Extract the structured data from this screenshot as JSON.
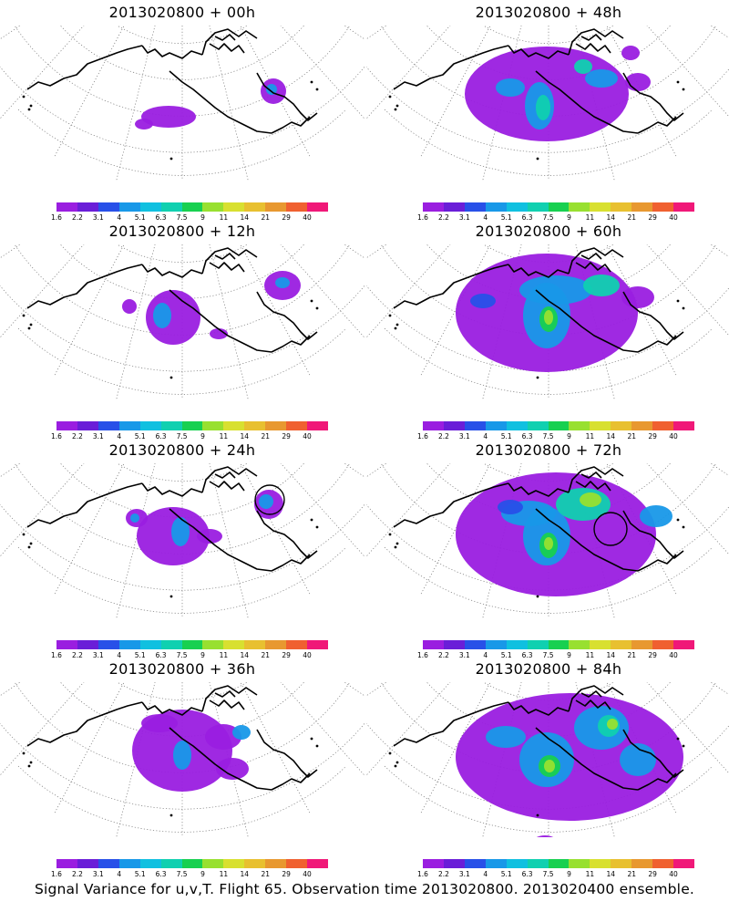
{
  "chart_data": {
    "type": "heatmap",
    "colorbar": {
      "labels": [
        "1.6",
        "2.2",
        "3.1",
        "4",
        "5.1",
        "6.3",
        "7.5",
        "9",
        "11",
        "14",
        "21",
        "29",
        "40"
      ],
      "colors": [
        "#9a1ee0",
        "#6a1ed8",
        "#2850e8",
        "#1898e8",
        "#10c0e0",
        "#10d0b0",
        "#18d050",
        "#98e030",
        "#d8e030",
        "#e8c030",
        "#e89830",
        "#f06030",
        "#f01878"
      ]
    },
    "panels": [
      {
        "title": "2013020800  + 00h",
        "lead_hours": 0
      },
      {
        "title": "2013020800  + 12h",
        "lead_hours": 12
      },
      {
        "title": "2013020800  + 24h",
        "lead_hours": 24
      },
      {
        "title": "2013020800  + 36h",
        "lead_hours": 36
      },
      {
        "title": "2013020800  + 48h",
        "lead_hours": 48
      },
      {
        "title": "2013020800  + 60h",
        "lead_hours": 60
      },
      {
        "title": "2013020800  + 72h",
        "lead_hours": 72
      },
      {
        "title": "2013020800  + 84h",
        "lead_hours": 84
      }
    ]
  },
  "footer": "Signal Variance for u,v,T. Flight 65. Observation time 2013020800. 2013020400 ensemble."
}
